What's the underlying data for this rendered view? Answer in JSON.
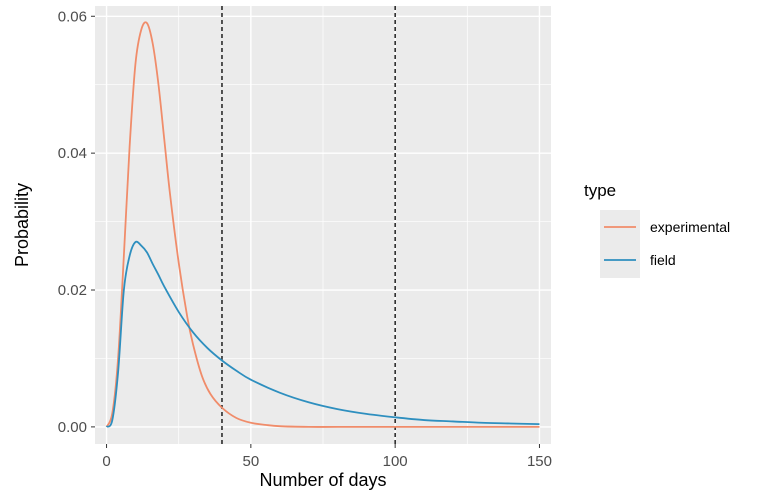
{
  "chart_data": {
    "type": "line",
    "title": "",
    "xlabel": "Number of days",
    "ylabel": "Probability",
    "xlim": [
      -4,
      154
    ],
    "ylim": [
      -0.0025,
      0.0615
    ],
    "x_ticks": [
      0,
      50,
      100,
      150
    ],
    "x_tick_labels": [
      "0",
      "50",
      "100",
      "150"
    ],
    "y_ticks": [
      0.0,
      0.02,
      0.04,
      0.06
    ],
    "y_tick_labels": [
      "0.00",
      "0.02",
      "0.04",
      "0.06"
    ],
    "grid": true,
    "legend": {
      "title": "type",
      "position": "right"
    },
    "vlines": [
      40,
      100
    ],
    "series": [
      {
        "name": "experimental",
        "color": "#F08C6A",
        "x": [
          0,
          2,
          4,
          6,
          8,
          10,
          12,
          14,
          16,
          18,
          20,
          22,
          25,
          28,
          30,
          33,
          36,
          40,
          45,
          50,
          55,
          60,
          70,
          80,
          100,
          120,
          150
        ],
        "y": [
          0.0,
          0.002,
          0.01,
          0.025,
          0.041,
          0.053,
          0.058,
          0.059,
          0.056,
          0.05,
          0.042,
          0.034,
          0.024,
          0.016,
          0.012,
          0.0075,
          0.0048,
          0.0028,
          0.0013,
          0.0006,
          0.0003,
          0.0001,
          0.0,
          0.0,
          0.0,
          0.0,
          0.0
        ]
      },
      {
        "name": "field",
        "color": "#2E8FBF",
        "x": [
          0,
          2,
          4,
          6,
          8,
          10,
          12,
          14,
          16,
          18,
          20,
          25,
          30,
          35,
          40,
          45,
          50,
          60,
          70,
          80,
          90,
          100,
          110,
          120,
          130,
          140,
          150
        ],
        "y": [
          0.0,
          0.001,
          0.008,
          0.02,
          0.025,
          0.027,
          0.0265,
          0.0255,
          0.0238,
          0.0222,
          0.0205,
          0.0168,
          0.0138,
          0.0115,
          0.0097,
          0.0082,
          0.0069,
          0.005,
          0.0036,
          0.0026,
          0.0019,
          0.0014,
          0.001,
          0.0008,
          0.0006,
          0.0005,
          0.0004
        ]
      }
    ]
  }
}
